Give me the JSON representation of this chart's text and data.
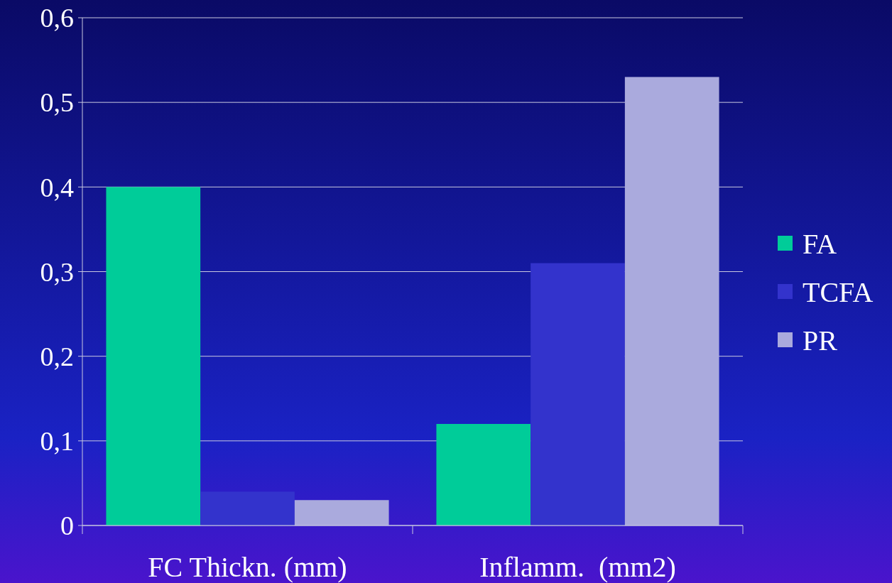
{
  "chart_data": {
    "type": "bar",
    "categories": [
      "FC Thickn. (mm)",
      "Inflamm.  (mm2)"
    ],
    "series": [
      {
        "name": "FA",
        "color": "#00cc99",
        "values": [
          0.4,
          0.12
        ]
      },
      {
        "name": "TCFA",
        "color": "#3333cc",
        "values": [
          0.04,
          0.31
        ]
      },
      {
        "name": "PR",
        "color": "#aaaadd",
        "values": [
          0.03,
          0.53
        ]
      }
    ],
    "ylim": [
      0,
      0.6
    ],
    "yticks": [
      0,
      {
        "value": 0.1,
        "label": "0,1"
      },
      {
        "value": 0.2,
        "label": "0,2"
      },
      {
        "value": 0.3,
        "label": "0,3"
      },
      {
        "value": 0.4,
        "label": "0,4"
      },
      {
        "value": 0.5,
        "label": "0,5"
      },
      {
        "value": 0.6,
        "label": "0,6"
      }
    ],
    "grid": "y",
    "legend": "right"
  }
}
